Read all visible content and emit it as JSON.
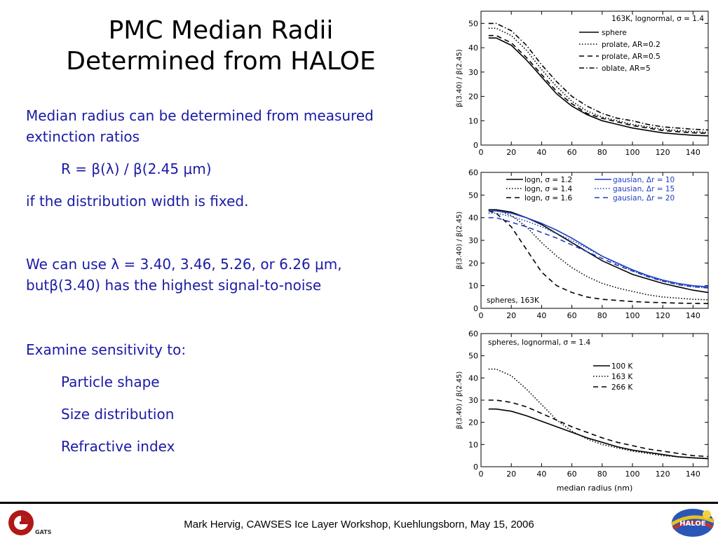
{
  "title": {
    "line1": "PMC Median Radii",
    "line2": "Determined from HALOE"
  },
  "body": {
    "p1a": "Median radius can be determined from measured",
    "p1b": "extinction ratios",
    "formula": "R = β(λ) / β(2.45 μm)",
    "p2": "if the distribution width is fixed.",
    "p3a": "We can use λ = 3.40, 3.46, 5.26, or 6.26 μm,",
    "p3b": "butβ(3.40) has the highest signal-to-noise",
    "p4": "Examine sensitivity to:",
    "bullets": [
      "Particle shape",
      "Size distribution",
      "Refractive index"
    ]
  },
  "footer": {
    "text": "Mark Hervig, CAWSES Ice Layer Workshop, Kuehlungsborn, May 15, 2006",
    "logo_left_label": "GATS",
    "logo_right_label": "HALOE"
  },
  "chart_data": [
    {
      "type": "line",
      "ylabel": "β(3.40) / β(2.45)",
      "xlabel": "",
      "xlim": [
        0,
        150
      ],
      "ylim": [
        0,
        55
      ],
      "xticks": [
        0,
        20,
        40,
        60,
        80,
        100,
        120,
        140
      ],
      "yticks": [
        0,
        10,
        20,
        30,
        40,
        50
      ],
      "legend_header": "163K, lognormal, σ = 1.4",
      "legend_position": "top-right",
      "series": [
        {
          "name": "sphere",
          "style": "solid",
          "color": "#000000",
          "x": [
            5,
            10,
            20,
            30,
            40,
            50,
            60,
            70,
            80,
            90,
            100,
            110,
            120,
            130,
            140,
            150
          ],
          "y": [
            44,
            44,
            41,
            35,
            28,
            21,
            16,
            12.5,
            10,
            8.5,
            7,
            6,
            5,
            4.5,
            4,
            3.8
          ]
        },
        {
          "name": "prolate, AR=0.2",
          "style": "dotted",
          "color": "#000000",
          "x": [
            5,
            10,
            20,
            30,
            40,
            50,
            60,
            70,
            80,
            90,
            100,
            110,
            120,
            130,
            140,
            150
          ],
          "y": [
            48,
            48,
            45,
            39,
            31,
            24,
            18,
            14,
            11.5,
            10,
            8.5,
            7.5,
            6.5,
            6,
            5.5,
            5.2
          ]
        },
        {
          "name": "prolate, AR=0.5",
          "style": "dashed",
          "color": "#000000",
          "x": [
            5,
            10,
            20,
            30,
            40,
            50,
            60,
            70,
            80,
            90,
            100,
            110,
            120,
            130,
            140,
            150
          ],
          "y": [
            45,
            45,
            42,
            36,
            29,
            22,
            17,
            13,
            11,
            9.5,
            8,
            7,
            6,
            5.5,
            5,
            4.8
          ]
        },
        {
          "name": "oblate, AR=5",
          "style": "dashdot",
          "color": "#000000",
          "x": [
            5,
            10,
            20,
            30,
            40,
            50,
            60,
            70,
            80,
            90,
            100,
            110,
            120,
            130,
            140,
            150
          ],
          "y": [
            50,
            50,
            47,
            41,
            33,
            26,
            20,
            16,
            13,
            11,
            10,
            8.5,
            7.5,
            7,
            6.5,
            6.2
          ]
        }
      ]
    },
    {
      "type": "line",
      "ylabel": "β(3.40) / β(2.45)",
      "xlabel": "",
      "xlim": [
        0,
        150
      ],
      "ylim": [
        0,
        60
      ],
      "xticks": [
        0,
        20,
        40,
        60,
        80,
        100,
        120,
        140
      ],
      "yticks": [
        0,
        10,
        20,
        30,
        40,
        50,
        60
      ],
      "annotation": "spheres, 163K",
      "legend_position": "top",
      "series": [
        {
          "name": "logn, σ = 1.2",
          "style": "solid",
          "color": "#000000",
          "x": [
            5,
            10,
            20,
            30,
            40,
            50,
            60,
            70,
            80,
            90,
            100,
            110,
            120,
            130,
            140,
            150
          ],
          "y": [
            43.5,
            43.5,
            42.5,
            40,
            37,
            33,
            29,
            25,
            21,
            18,
            15,
            13,
            11,
            9.5,
            8,
            7
          ]
        },
        {
          "name": "logn, σ = 1.4",
          "style": "dotted",
          "color": "#000000",
          "x": [
            5,
            10,
            20,
            30,
            40,
            50,
            60,
            70,
            80,
            90,
            100,
            110,
            120,
            130,
            140,
            150
          ],
          "y": [
            43.5,
            43.5,
            41,
            36,
            29,
            23,
            18,
            14,
            11,
            9,
            7.5,
            6,
            5,
            4.5,
            4,
            3.8
          ]
        },
        {
          "name": "logn, σ = 1.6",
          "style": "dashed",
          "color": "#000000",
          "x": [
            5,
            10,
            20,
            30,
            40,
            50,
            60,
            70,
            80,
            90,
            100,
            110,
            120,
            130,
            140,
            150
          ],
          "y": [
            43,
            42,
            36,
            26,
            16,
            10,
            7,
            5,
            4,
            3.5,
            3,
            2.7,
            2.5,
            2.3,
            2.2,
            2.1
          ]
        },
        {
          "name": "gausian, Δr = 10",
          "style": "solid",
          "color": "#1f3fbf",
          "x": [
            5,
            10,
            20,
            30,
            40,
            50,
            60,
            70,
            80,
            90,
            100,
            110,
            120,
            130,
            140,
            150
          ],
          "y": [
            43,
            43,
            42,
            40,
            37.5,
            34.5,
            31,
            27,
            23,
            20,
            17,
            14.5,
            12.5,
            11,
            10,
            9.5
          ]
        },
        {
          "name": "gausian, Δr = 15",
          "style": "dotted",
          "color": "#1f3fbf",
          "x": [
            5,
            10,
            20,
            30,
            40,
            50,
            60,
            70,
            80,
            90,
            100,
            110,
            120,
            130,
            140,
            150
          ],
          "y": [
            42,
            42,
            40.5,
            38.5,
            36,
            33,
            30,
            26.5,
            23,
            19.5,
            16.5,
            14,
            12,
            10.5,
            9.5,
            9
          ]
        },
        {
          "name": "gausian, Δr = 20",
          "style": "dashed",
          "color": "#1f3fbf",
          "x": [
            5,
            10,
            20,
            30,
            40,
            50,
            60,
            70,
            80,
            90,
            100,
            110,
            120,
            130,
            140,
            150
          ],
          "y": [
            40,
            40,
            38,
            36,
            33.5,
            31,
            28,
            25,
            22,
            19,
            16.5,
            14,
            12,
            10.5,
            9.5,
            9
          ]
        }
      ]
    },
    {
      "type": "line",
      "ylabel": "β(3.40) / β(2.45)",
      "xlabel": "median radius (nm)",
      "xlim": [
        0,
        150
      ],
      "ylim": [
        0,
        60
      ],
      "xticks": [
        0,
        20,
        40,
        60,
        80,
        100,
        120,
        140
      ],
      "yticks": [
        0,
        10,
        20,
        30,
        40,
        50,
        60
      ],
      "legend_header": "spheres, lognormal, σ = 1.4",
      "legend_position": "top-right",
      "series": [
        {
          "name": "100 K",
          "style": "solid",
          "color": "#000000",
          "x": [
            5,
            10,
            20,
            30,
            40,
            50,
            60,
            70,
            80,
            90,
            100,
            110,
            120,
            130,
            140,
            150
          ],
          "y": [
            26,
            26,
            25,
            23,
            20.5,
            18,
            15.5,
            13,
            11,
            9,
            7.5,
            6.5,
            5.5,
            4.5,
            4,
            3.6
          ]
        },
        {
          "name": "163 K",
          "style": "dotted",
          "color": "#000000",
          "x": [
            5,
            10,
            20,
            30,
            40,
            50,
            60,
            70,
            80,
            90,
            100,
            110,
            120,
            130,
            140,
            150
          ],
          "y": [
            44,
            44,
            41,
            35,
            28,
            21,
            16,
            12.5,
            10,
            8.5,
            7,
            6,
            5,
            4.5,
            4,
            3.8
          ]
        },
        {
          "name": "266 K",
          "style": "dashed",
          "color": "#000000",
          "x": [
            5,
            10,
            20,
            30,
            40,
            50,
            60,
            70,
            80,
            90,
            100,
            110,
            120,
            130,
            140,
            150
          ],
          "y": [
            30,
            30,
            29,
            27,
            24,
            21,
            18,
            15.5,
            13,
            11,
            9.5,
            8,
            7,
            6,
            5,
            4.6
          ]
        }
      ]
    }
  ]
}
